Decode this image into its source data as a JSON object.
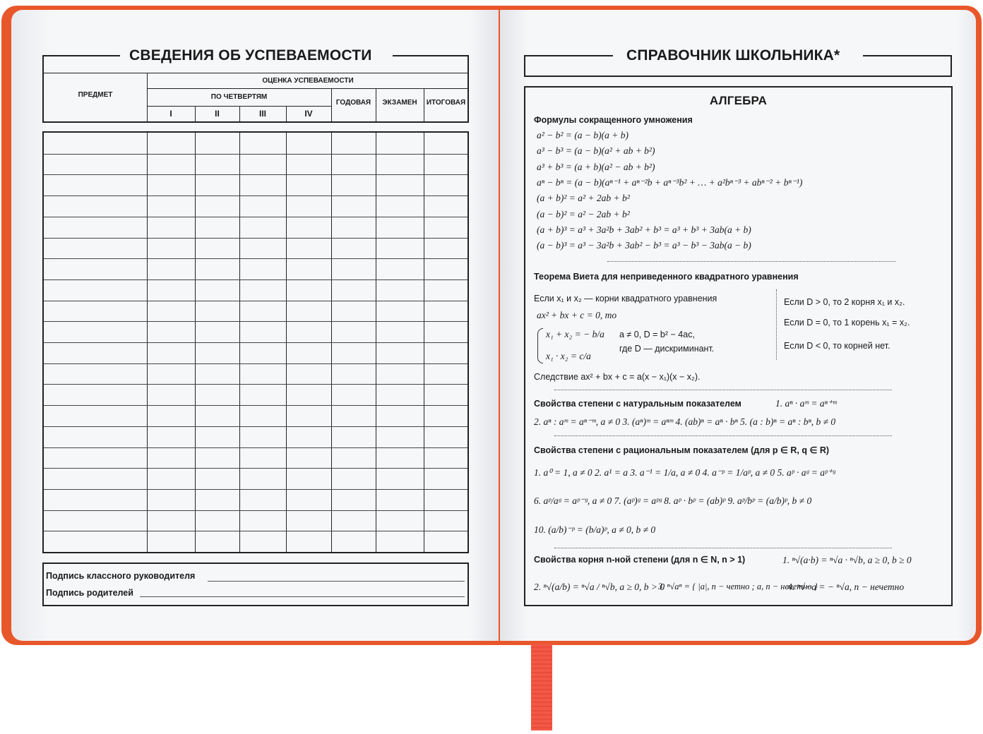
{
  "colors": {
    "cover": "#e8572a",
    "ribbon": "#f25846",
    "page": "#f6f7f9"
  },
  "left": {
    "title": "СВЕДЕНИЯ ОБ УСПЕВАЕМОСТИ",
    "headers": {
      "subject": "ПРЕДМЕТ",
      "grade": "ОЦЕНКА УСПЕВАЕМОСТИ",
      "quarters": "ПО ЧЕТВЕРТЯМ",
      "q1": "I",
      "q2": "II",
      "q3": "III",
      "q4": "IV",
      "annual": "ГОДОВАЯ",
      "exam": "ЭКЗАМЕН",
      "final": "ИТОГОВАЯ"
    },
    "signatures": {
      "teacher": "Подпись классного руководителя",
      "parents": "Подпись родителей"
    }
  },
  "right": {
    "title": "СПРАВОЧНИК ШКОЛЬНИКА*",
    "section": "АЛГЕБРА",
    "s1": {
      "heading": "Формулы сокращенного умножения",
      "lines": [
        "a² − b² = (a − b)(a + b)",
        "a³ − b³ = (a − b)(a² + ab + b²)",
        "a³ + b³ = (a + b)(a² − ab + b²)",
        "aⁿ − bⁿ = (a − b)(aⁿ⁻¹ + aⁿ⁻²b + aⁿ⁻³b² + … + a²bⁿ⁻³ + abⁿ⁻² + bⁿ⁻¹)",
        "(a + b)² = a² + 2ab + b²",
        "(a − b)² = a² − 2ab + b²",
        "(a + b)³ = a³ + 3a²b + 3ab² + b³ = a³ + b³ + 3ab(a + b)",
        "(a − b)³ = a³ − 3a²b + 3ab² − b³ = a³ − b³ − 3ab(a − b)"
      ]
    },
    "s2": {
      "heading": "Теорема Виета для неприведенного квадратного уравнения",
      "intro1": "Если  x₁ и x₂ — корни квадратного уравнения",
      "intro2": "ax² + bx + c = 0, то",
      "sys1": "x₁ + x₂ = − b/a",
      "sys2": "x₁ · x₂ = c/a",
      "cond1": "a ≠ 0,  D = b² − 4ac,",
      "cond2": "где D — дискриминант.",
      "corollary": "Следствие   ax² + bx + c = a(x − x₁)(x − x₂).",
      "d1": "Если  D > 0, то 2 корня x₁ и x₂.",
      "d2": "Если  D = 0, то 1 корень x₁ = x₂.",
      "d3": "Если  D < 0, то корней нет."
    },
    "s3": {
      "heading": "Свойства степени с натуральным показателем",
      "p1": "1. aⁿ · aᵐ = aⁿ⁺ᵐ",
      "row": "2. aⁿ : aᵐ = aⁿ⁻ᵐ,  a ≠ 0   3. (aⁿ)ᵐ = aⁿᵐ   4. (ab)ⁿ = aⁿ · bⁿ   5. (a : b)ⁿ = aⁿ : bⁿ,  b ≠ 0"
    },
    "s4": {
      "heading": "Свойства степени с рациональным показателем (для p ∈ R, q ∈ R)",
      "row1": "1. a⁰ = 1,  a ≠ 0   2. a¹ = a   3. a⁻¹ = 1/a,  a ≠ 0   4. a⁻ᵖ = 1/aᵖ,  a ≠ 0   5. aᵖ · aᵍ = aᵖ⁺ᵍ",
      "row2": "6. aᵖ/aᵍ = aᵖ⁻ᵍ,  a ≠ 0   7. (aᵖ)ᵍ = aᵖᵍ   8. aᵖ · bᵖ = (ab)ᵖ   9. aᵖ/bᵖ = (a/b)ᵖ,  b ≠ 0",
      "row3": "10. (a/b)⁻ᵖ = (b/a)ᵖ,  a ≠ 0, b ≠ 0"
    },
    "s5": {
      "heading": "Свойства корня n-ной степени (для n ∈ N, n > 1)",
      "p1": "1. ⁿ√(a·b) = ⁿ√a · ⁿ√b,  a ≥ 0,  b ≥ 0",
      "p2": "2. ⁿ√(a/b) = ⁿ√a / ⁿ√b,  a ≥ 0, b > 0",
      "p3": "3. ⁿ√aⁿ = { |a|, n − четно ; a, n − нечетно }",
      "p4": "4. ⁿ√−a = − ⁿ√a, n − нечетно"
    }
  }
}
